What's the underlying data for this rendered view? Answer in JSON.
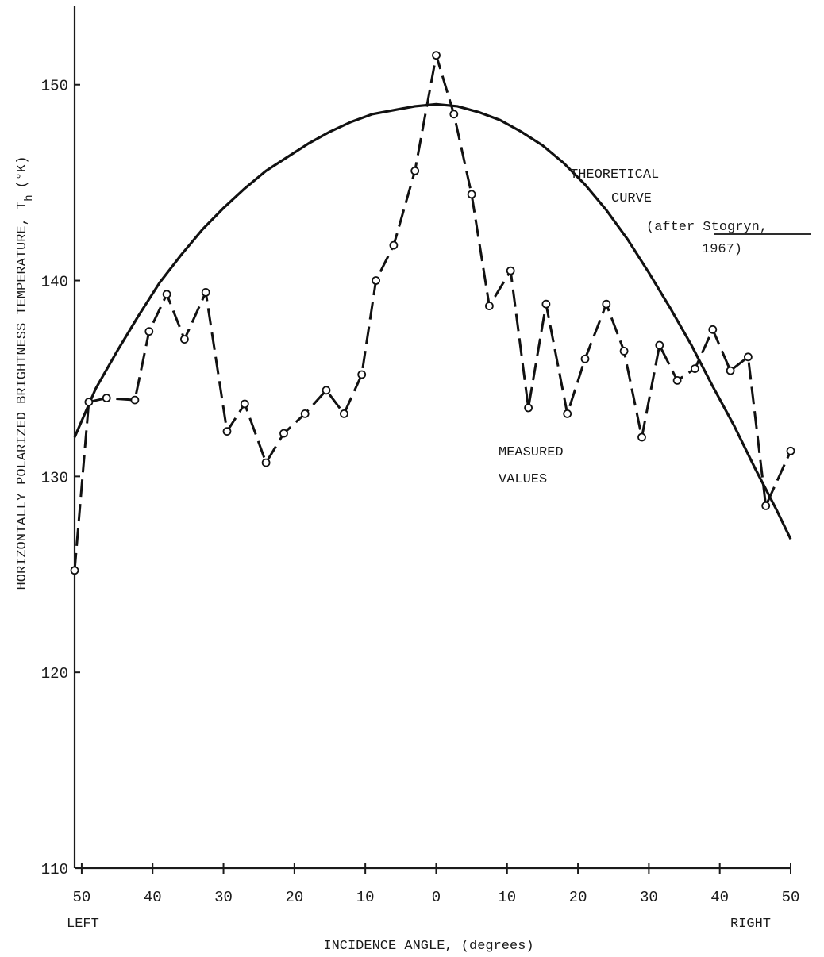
{
  "chart_data": {
    "type": "line",
    "ylabel": "HORIZONTALLY POLARIZED BRIGHTNESS TEMPERATURE, T",
    "ylabel_subscript": "h",
    "ylabel_unit": "(°K)",
    "xlabel": "INCIDENCE ANGLE, (degrees)",
    "x_left_label": "LEFT",
    "x_right_label": "RIGHT",
    "xlim": [
      -51,
      50
    ],
    "ylim": [
      110,
      154
    ],
    "x_ticks": [
      -50,
      -40,
      -30,
      -20,
      -10,
      0,
      10,
      20,
      30,
      40,
      50
    ],
    "x_tick_labels": [
      "50",
      "40",
      "30",
      "20",
      "10",
      "0",
      "10",
      "20",
      "30",
      "40",
      "50"
    ],
    "y_ticks": [
      110,
      120,
      130,
      140,
      150
    ],
    "y_tick_labels": [
      "110",
      "120",
      "130",
      "140",
      "150"
    ],
    "grid": false,
    "series": [
      {
        "role": "theoretical",
        "style": "solid",
        "x": [
          -51,
          -48,
          -45,
          -42,
          -39,
          -36,
          -33,
          -30,
          -27,
          -24,
          -21,
          -18,
          -15,
          -12,
          -9,
          -6,
          -3,
          0,
          3,
          6,
          9,
          12,
          15,
          18,
          21,
          24,
          27,
          30,
          33,
          36,
          39,
          42,
          45,
          48,
          50
        ],
        "values": [
          132.0,
          134.5,
          136.4,
          138.2,
          139.9,
          141.3,
          142.6,
          143.7,
          144.7,
          145.6,
          146.3,
          147.0,
          147.6,
          148.1,
          148.5,
          148.7,
          148.9,
          149.0,
          148.9,
          148.6,
          148.2,
          147.6,
          146.9,
          146.0,
          144.9,
          143.6,
          142.1,
          140.4,
          138.6,
          136.7,
          134.6,
          132.6,
          130.4,
          128.3,
          126.8
        ]
      },
      {
        "role": "measured",
        "style": "dashed",
        "markers": "open-circle",
        "x": [
          -51,
          -49,
          -46.5,
          -42.5,
          -40.5,
          -38,
          -35.5,
          -32.5,
          -29.5,
          -27,
          -24,
          -21.5,
          -18.5,
          -15.5,
          -13,
          -10.5,
          -8.5,
          -6,
          -3,
          0,
          2.5,
          5,
          7.5,
          10.5,
          13,
          15.5,
          18.5,
          21,
          24,
          26.5,
          29,
          31.5,
          34,
          36.5,
          39,
          41.5,
          44,
          46.5,
          50
        ],
        "values": [
          125.2,
          133.8,
          134.0,
          133.9,
          137.4,
          139.3,
          137.0,
          139.4,
          132.3,
          133.7,
          130.7,
          132.2,
          133.2,
          134.4,
          133.2,
          135.2,
          140.0,
          141.8,
          145.6,
          151.5,
          148.5,
          144.4,
          138.7,
          140.5,
          133.5,
          138.8,
          133.2,
          136.0,
          138.8,
          136.4,
          132.0,
          136.7,
          134.9,
          135.5,
          137.5,
          135.4,
          136.1,
          128.5,
          131.3
        ]
      }
    ],
    "annotations": [
      {
        "target": "theoretical",
        "lines": [
          "THEORETICAL",
          "CURVE",
          "(after Stogryn,",
          "1967)"
        ]
      },
      {
        "target": "measured",
        "lines": [
          "MEASURED",
          "VALUES"
        ]
      }
    ]
  }
}
